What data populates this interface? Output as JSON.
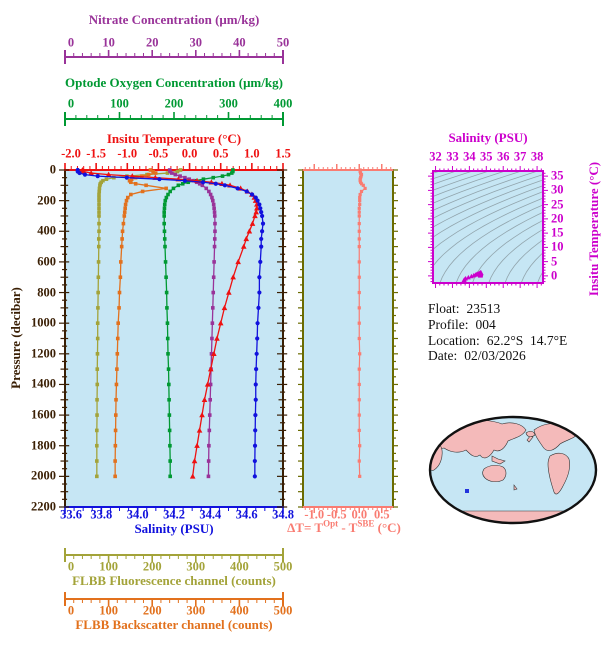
{
  "window": {
    "bg": "#ffffff"
  },
  "info": {
    "lines": [
      {
        "label": "Float:",
        "value": "23513"
      },
      {
        "label": "Profile:",
        "value": "004"
      },
      {
        "label": "Location:",
        "value": "62.2°S  14.7°E"
      },
      {
        "label": "Date:",
        "value": "02/03/2026"
      }
    ]
  },
  "chart_data": {
    "type": "line",
    "description": "Profiling float vertical profiles versus pressure with Delta-T panel, T-S diagram and location map",
    "plot_bg": "#C6E6F4",
    "pressure_axis": {
      "label": "Pressure (decibar)",
      "range": [
        0,
        2200
      ],
      "tick_step": 200,
      "minor_step": 50,
      "color": "#3A1F04",
      "tick_labels": [
        "0",
        "200",
        "400",
        "600",
        "800",
        "1000",
        "1200",
        "1400",
        "1600",
        "1800",
        "2000",
        "2200"
      ]
    },
    "pressures": [
      0,
      10,
      20,
      30,
      40,
      50,
      60,
      70,
      80,
      90,
      100,
      120,
      140,
      160,
      180,
      200,
      225,
      250,
      275,
      300,
      350,
      400,
      450,
      500,
      600,
      700,
      800,
      900,
      1000,
      1100,
      1200,
      1300,
      1400,
      1500,
      1600,
      1700,
      1800,
      1900,
      2000
    ],
    "rulers": [
      {
        "id": "nitrate",
        "title": "Nitrate Concentration (μm/kg)",
        "color": "#993399",
        "range": [
          0,
          50
        ],
        "ticks": [
          0,
          10,
          20,
          30,
          40,
          50
        ],
        "tick_labels": [
          "0",
          "10",
          "20",
          "30",
          "40",
          "50"
        ],
        "minor_step": 2
      },
      {
        "id": "oxygen",
        "title": "Optode Oxygen Concentration (μm/kg)",
        "color": "#009933",
        "range": [
          0,
          400
        ],
        "ticks": [
          0,
          100,
          200,
          300,
          400
        ],
        "tick_labels": [
          "0",
          "100",
          "200",
          "300",
          "400"
        ],
        "minor_step": 20
      },
      {
        "id": "temperature",
        "title": "Insitu Temperature (°C)",
        "color": "#EE1111",
        "range": [
          -2,
          1.5
        ],
        "ticks": [
          -2,
          -1.5,
          -1,
          -0.5,
          0,
          0.5,
          1,
          1.5
        ],
        "tick_labels": [
          "-2.0",
          "-1.5",
          "-1.0",
          "-0.5",
          "0.0",
          "0.5",
          "1.0",
          "1.5"
        ],
        "minor_step": 0.1
      },
      {
        "id": "salinity",
        "title": "Salinity (PSU)",
        "color": "#1111DD",
        "range": [
          33.6,
          34.8
        ],
        "ticks": [
          33.6,
          33.8,
          34.0,
          34.2,
          34.4,
          34.6,
          34.8
        ],
        "tick_labels": [
          "33.6",
          "33.8",
          "34.0",
          "34.2",
          "34.4",
          "34.6",
          "34.8"
        ],
        "minor_step": 0.05
      },
      {
        "id": "fluorescence",
        "title": "FLBB Fluorescence channel (counts)",
        "color": "#A3A339",
        "range": [
          0,
          500
        ],
        "ticks": [
          0,
          100,
          200,
          300,
          400,
          500
        ],
        "tick_labels": [
          "0",
          "100",
          "200",
          "300",
          "400",
          "500"
        ],
        "minor_step": 20
      },
      {
        "id": "backscatter",
        "title": "FLBB Backscatter channel (counts)",
        "color": "#E2711D",
        "range": [
          0,
          500
        ],
        "ticks": [
          0,
          100,
          200,
          300,
          400,
          500
        ],
        "tick_labels": [
          "0",
          "100",
          "200",
          "300",
          "400",
          "500"
        ],
        "minor_step": 20
      }
    ],
    "series": [
      {
        "id": "fluorescence",
        "axis": "fluorescence",
        "color": "#A3A339",
        "marker": "square",
        "values": [
          265,
          258,
          235,
          188,
          142,
          112,
          95,
          87,
          83,
          81,
          80,
          79,
          78.5,
          78,
          78,
          78,
          78,
          78,
          78,
          78,
          78,
          78,
          77.5,
          77.5,
          77,
          76.5,
          76,
          75.5,
          75,
          75,
          74.5,
          74,
          74,
          73.5,
          73.5,
          73,
          73,
          73,
          73
        ]
      },
      {
        "id": "backscatter",
        "axis": "backscatter",
        "color": "#E2711D",
        "marker": "square",
        "values": [
          196,
          202,
          208,
          192,
          176,
          162,
          153,
          148,
          151,
          162,
          186,
          232,
          178,
          151,
          144,
          141,
          139,
          138,
          137,
          136,
          134,
          132,
          131,
          130,
          128,
          127,
          125,
          124,
          122,
          121,
          120,
          119,
          118,
          117,
          116.5,
          116,
          115.5,
          115,
          115
        ]
      },
      {
        "id": "oxygen",
        "axis": "oxygen",
        "color": "#009933",
        "marker": "square",
        "values": [
          308,
          308,
          306,
          300,
          289,
          272,
          254,
          238,
          226,
          216,
          208,
          199,
          193,
          189,
          186,
          184,
          183,
          182.5,
          182,
          182,
          182,
          182.5,
          183,
          183.5,
          184.5,
          185.5,
          186.5,
          187,
          188,
          188.5,
          189,
          190,
          190.5,
          191,
          191.5,
          192,
          192.5,
          193,
          193
        ]
      },
      {
        "id": "nitrate",
        "axis": "nitrate",
        "color": "#993399",
        "marker": "square",
        "values": [
          24.0,
          24.1,
          24.5,
          25.3,
          26.4,
          27.5,
          28.5,
          29.4,
          30.2,
          30.9,
          31.5,
          32.4,
          33.0,
          33.4,
          33.7,
          33.9,
          34.1,
          34.2,
          34.3,
          34.35,
          34.4,
          34.4,
          34.35,
          34.3,
          34.2,
          34.1,
          34.0,
          33.9,
          33.8,
          33.7,
          33.6,
          33.5,
          33.4,
          33.3,
          33.2,
          33.1,
          33.0,
          32.95,
          32.9
        ]
      },
      {
        "id": "temperature",
        "axis": "temperature",
        "color": "#EE1111",
        "marker": "triangle",
        "values": [
          -1.72,
          -1.7,
          -1.58,
          -1.3,
          -0.92,
          -0.55,
          -0.18,
          0.12,
          0.35,
          0.52,
          0.65,
          0.82,
          0.93,
          1.0,
          1.04,
          1.06,
          1.08,
          1.08,
          1.07,
          1.05,
          1.01,
          0.96,
          0.91,
          0.87,
          0.78,
          0.7,
          0.63,
          0.56,
          0.5,
          0.44,
          0.39,
          0.34,
          0.29,
          0.24,
          0.2,
          0.16,
          0.12,
          0.08,
          0.05
        ]
      },
      {
        "id": "salinity",
        "axis": "salinity",
        "color": "#1111DD",
        "marker": "circle",
        "values": [
          33.67,
          33.67,
          33.68,
          33.71,
          33.78,
          33.94,
          34.12,
          34.26,
          34.36,
          34.43,
          34.48,
          34.55,
          34.6,
          34.63,
          34.65,
          34.66,
          34.67,
          34.675,
          34.68,
          34.685,
          34.69,
          34.685,
          34.68,
          34.68,
          34.675,
          34.67,
          34.67,
          34.665,
          34.66,
          34.658,
          34.655,
          34.652,
          34.65,
          34.65,
          34.648,
          34.647,
          34.646,
          34.645,
          34.645
        ]
      }
    ],
    "delta_plot": {
      "formula": {
        "prefix": "ΔT= T",
        "sup1": "Opt",
        "mid": " - T",
        "sup2": "SBE",
        "suffix": " (°C)"
      },
      "color": "#F97C72",
      "frame_side_color": "#6B6B00",
      "range": [
        -1.25,
        0.75
      ],
      "ticks": [
        -1.0,
        -0.5,
        0.0,
        0.5
      ],
      "tick_labels": [
        "-1.0",
        "-0.5",
        "0.0",
        "0.5"
      ],
      "minor_step": 0.1,
      "values": [
        0.02,
        0.02,
        0.03,
        0.05,
        0.04,
        0.03,
        0.02,
        0.02,
        0.03,
        0.05,
        0.09,
        0.13,
        0.05,
        0.02,
        0.01,
        0.01,
        0.01,
        0,
        0,
        0,
        0,
        0,
        0,
        0,
        0,
        0,
        0,
        0,
        0,
        0,
        0.01,
        0,
        0,
        0,
        0,
        0,
        0.01,
        0,
        0.01
      ]
    },
    "ts_plot": {
      "title": "Salinity (PSU)",
      "ylabel": "Insitu Temperature (°C)",
      "color": "#CC00CC",
      "contour_color": "#8899A0",
      "x_range": [
        31.85,
        38.35
      ],
      "x_ticks": [
        32,
        33,
        34,
        35,
        36,
        37,
        38
      ],
      "x_tick_labels": [
        "32",
        "33",
        "34",
        "35",
        "36",
        "37",
        "38"
      ],
      "y_range": [
        -2.5,
        36.8
      ],
      "y_ticks": [
        0,
        5,
        10,
        15,
        20,
        25,
        30,
        35
      ],
      "y_tick_labels": [
        "0",
        "5",
        "10",
        "15",
        "20",
        "25",
        "30",
        "35"
      ]
    },
    "map": {
      "ocean": "#C6E6F4",
      "land": "#F4BABA",
      "outline": "#111111",
      "marker_color": "#2233DD"
    }
  }
}
